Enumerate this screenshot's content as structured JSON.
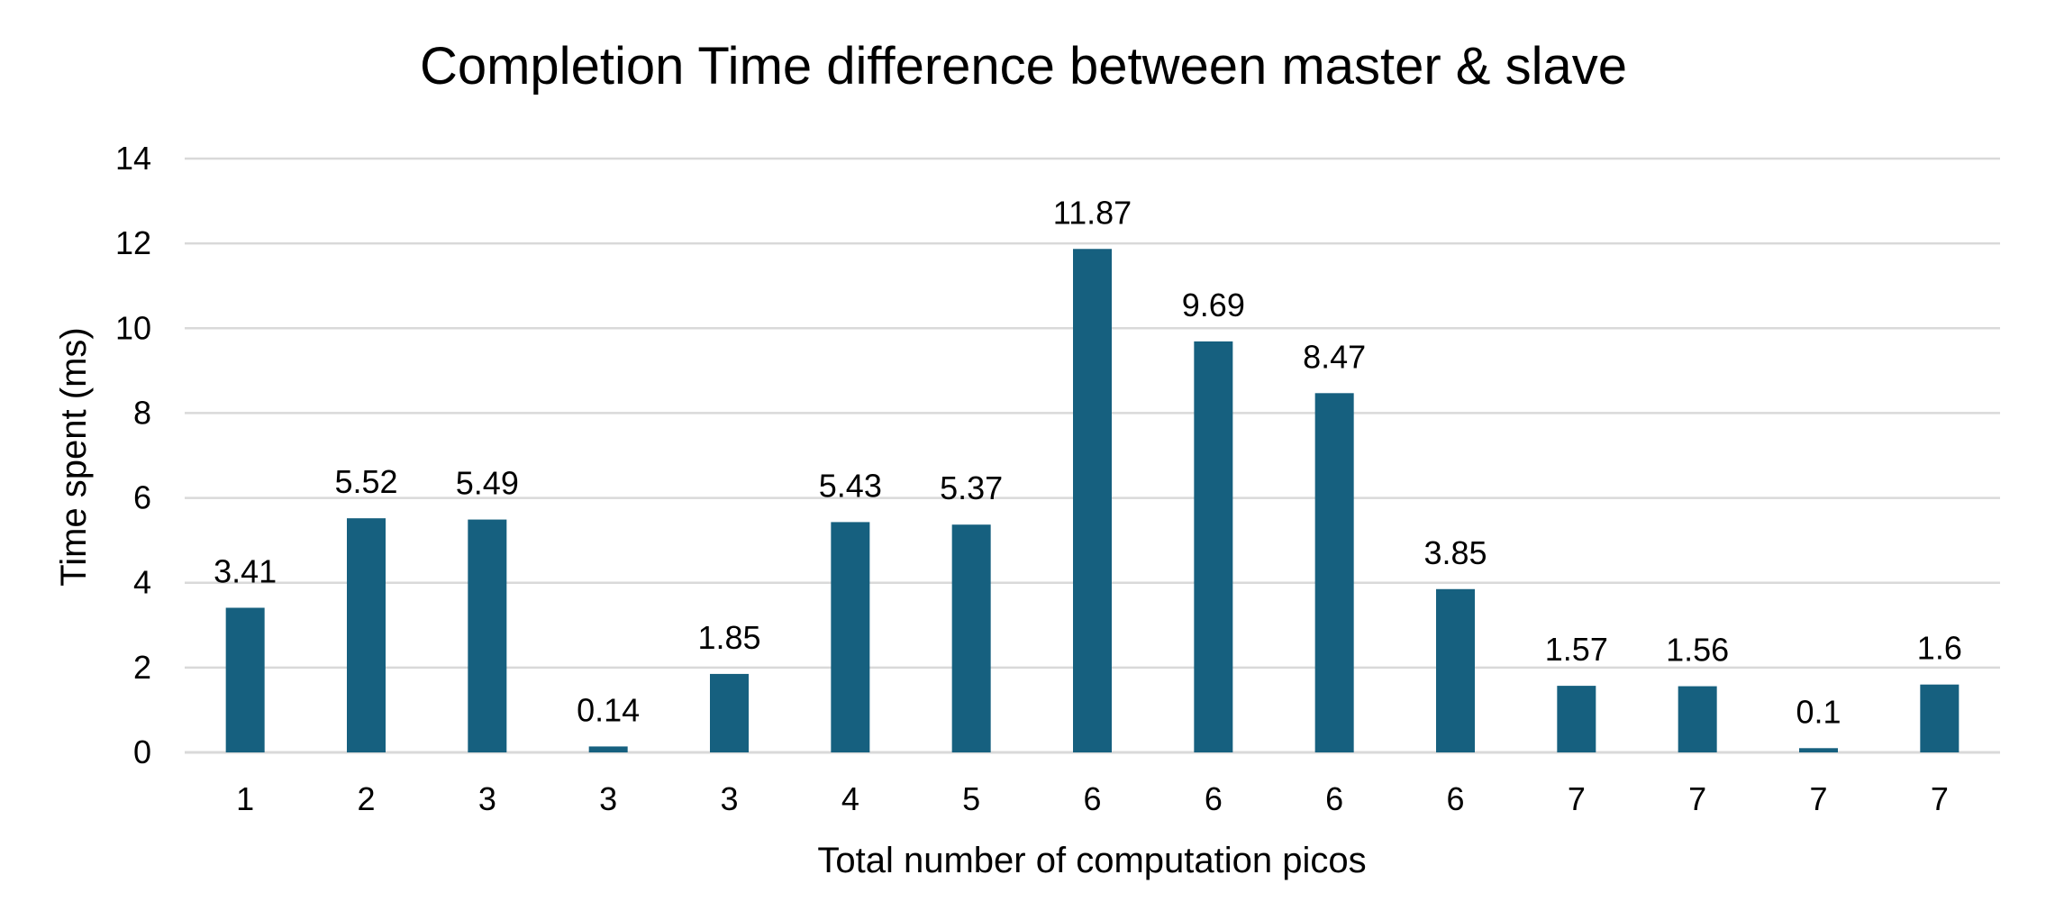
{
  "chart_data": {
    "type": "bar",
    "title": "Completion Time difference between master & slave",
    "xlabel": "Total number of computation picos",
    "ylabel": "Time spent (ms)",
    "categories": [
      "1",
      "2",
      "3",
      "3",
      "3",
      "4",
      "5",
      "6",
      "6",
      "6",
      "6",
      "7",
      "7",
      "7",
      "7"
    ],
    "values": [
      3.41,
      5.52,
      5.49,
      0.14,
      1.85,
      5.43,
      5.37,
      11.87,
      9.69,
      8.47,
      3.85,
      1.57,
      1.56,
      0.1,
      1.6
    ],
    "data_labels": [
      "3.41",
      "5.52",
      "5.49",
      "0.14",
      "1.85",
      "5.43",
      "5.37",
      "11.87",
      "9.69",
      "8.47",
      "3.85",
      "1.57",
      "1.56",
      "0.1",
      "1.6"
    ],
    "ylim": [
      0,
      14
    ],
    "yticks": [
      0,
      2,
      4,
      6,
      8,
      10,
      12,
      14
    ],
    "grid": true,
    "legend": "none",
    "bar_color": "#16607f",
    "grid_color": "#d9d9d9"
  }
}
